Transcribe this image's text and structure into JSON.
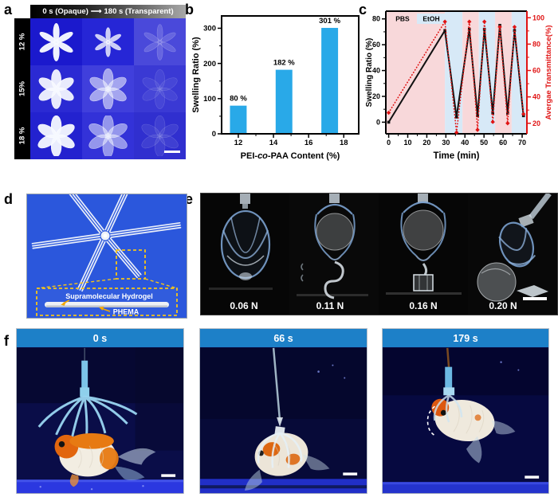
{
  "colors": {
    "bar_blue": "#29a9e8",
    "band_pbs_pink": "#f8d8da",
    "band_etoh_blue": "#d7e9f7",
    "transmittance_red": "#e01414",
    "f_header_blue": "#1d80c8",
    "d_bg_blue": "#2b57dc",
    "highlight_yellow": "#f5c518",
    "arrow_orange": "#f5a800"
  },
  "panels": {
    "a": {
      "label": "a",
      "header_left": "0 s (Opaque)",
      "arrow_glyph": "⟶",
      "header_right": "180 s (Transparent)",
      "row_labels": [
        "12 %",
        "15%",
        "18 %"
      ],
      "cells": [
        {
          "bg": "#1b19cd",
          "opacity": 0.97,
          "scale": 1.0,
          "petal": "narrow"
        },
        {
          "bg": "#2626d6",
          "opacity": 0.8,
          "scale": 0.78,
          "petal": "narrow"
        },
        {
          "bg": "#4a49da",
          "opacity": 0.16,
          "scale": 0.95,
          "petal": "narrow"
        },
        {
          "bg": "#2b2ad3",
          "opacity": 0.93,
          "scale": 1.0,
          "petal": "round"
        },
        {
          "bg": "#403fdc",
          "opacity": 0.55,
          "scale": 1.05,
          "petal": "round"
        },
        {
          "bg": "#3a39d4",
          "opacity": 0.07,
          "scale": 1.0,
          "petal": "round"
        },
        {
          "bg": "#2322cf",
          "opacity": 0.95,
          "scale": 1.05,
          "petal": "round"
        },
        {
          "bg": "#3332d8",
          "opacity": 0.5,
          "scale": 1.1,
          "petal": "round"
        },
        {
          "bg": "#302fcf",
          "opacity": 0.08,
          "scale": 1.05,
          "petal": "round"
        }
      ]
    },
    "b": {
      "label": "b"
    },
    "c": {
      "label": "c"
    },
    "d": {
      "label": "d",
      "annotations": [
        "Supramolecular Hydrogel",
        "PHEMA"
      ]
    },
    "e": {
      "label": "e",
      "force_labels": [
        "0.06 N",
        "0.11 N",
        "0.16 N",
        "0.20 N"
      ]
    },
    "f": {
      "label": "f",
      "time_labels": [
        "0 s",
        "66 s",
        "179 s"
      ]
    }
  },
  "chart_data": [
    {
      "panel": "b",
      "type": "bar",
      "xlabel_parts": [
        [
          "PEI-",
          false
        ],
        [
          "co",
          true
        ],
        [
          "-PAA Content (%)",
          false
        ]
      ],
      "ylabel": "Swelling Ratio (%)",
      "bar_x": [
        12,
        14.6,
        17.2
      ],
      "values": [
        80,
        182,
        301
      ],
      "bar_labels": [
        "80 %",
        "182 %",
        "301 %"
      ],
      "bar_width_units": 0.95,
      "bar_color": "#29a9e8",
      "xticks": [
        12,
        14,
        16,
        18
      ],
      "yticks": [
        0,
        100,
        200,
        300
      ],
      "x_minor_step": 1,
      "y_minor_step": 50,
      "xlim": [
        11.05,
        18.85
      ],
      "ylim": [
        0,
        335
      ]
    },
    {
      "panel": "c",
      "type": "line",
      "xlabel": "Time (min)",
      "ylabel_left": "Swelling Ratio (%)",
      "ylabel_right": "Avergae Transmittance(%)",
      "xticks": [
        0,
        10,
        20,
        30,
        40,
        50,
        60,
        70
      ],
      "yticks_left": [
        0,
        20,
        40,
        60,
        80
      ],
      "yticks_right": [
        20,
        40,
        60,
        80,
        100
      ],
      "x_minor_step": 5,
      "y_minor_step_left": 10,
      "y_minor_step_right": 10,
      "xlim": [
        -1.5,
        72.5
      ],
      "ylim_left": [
        -9,
        86
      ],
      "ylim_right": [
        12,
        105
      ],
      "legend": [
        {
          "label": "PBS",
          "color": "#f8d8da"
        },
        {
          "label": "EtOH",
          "color": "#d7e9f7"
        }
      ],
      "bands": [
        {
          "solution": "PBS",
          "from": -1.5,
          "to": 29.5
        },
        {
          "solution": "EtOH",
          "from": 29.5,
          "to": 38.7
        },
        {
          "solution": "PBS",
          "from": 38.7,
          "to": 47.3
        },
        {
          "solution": "EtOH",
          "from": 47.3,
          "to": 55.8
        },
        {
          "solution": "PBS",
          "from": 55.8,
          "to": 64.5
        },
        {
          "solution": "EtOH",
          "from": 64.5,
          "to": 72.5
        }
      ],
      "series": [
        {
          "name": "Swelling Ratio",
          "axis": "left",
          "color": "#111111",
          "marker": "square",
          "line": "solid",
          "points": [
            [
              0,
              0
            ],
            [
              29.5,
              71
            ],
            [
              35.6,
              4
            ],
            [
              42.3,
              72
            ],
            [
              46.6,
              5
            ],
            [
              50.2,
              72
            ],
            [
              54.6,
              7
            ],
            [
              58.3,
              75
            ],
            [
              62.4,
              7
            ],
            [
              66,
              71
            ],
            [
              70.7,
              5
            ]
          ]
        },
        {
          "name": "Avergae Transmittance",
          "axis": "right",
          "color": "#e01414",
          "marker": "diamond",
          "line": "dotted",
          "points": [
            [
              0,
              28
            ],
            [
              29.5,
              97
            ],
            [
              35.6,
              13
            ],
            [
              42.3,
              97
            ],
            [
              46.6,
              15
            ],
            [
              50.2,
              97
            ],
            [
              54.6,
              21
            ],
            [
              58.3,
              93
            ],
            [
              62.4,
              20
            ],
            [
              66,
              93
            ],
            [
              70.7,
              27
            ]
          ]
        }
      ]
    }
  ]
}
